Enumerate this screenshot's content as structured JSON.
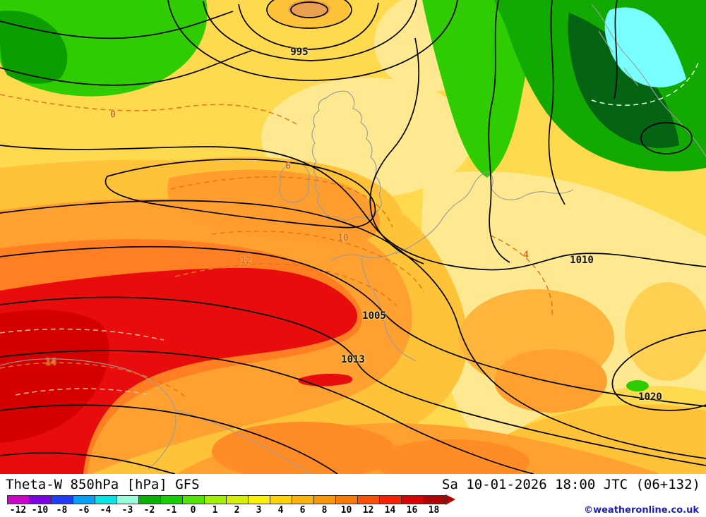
{
  "map": {
    "pressure_labels": [
      {
        "text": "995"
      },
      {
        "text": "1005"
      },
      {
        "text": "1010"
      },
      {
        "text": "1013"
      },
      {
        "text": "1020"
      }
    ],
    "theta_labels": [
      {
        "text": "0"
      },
      {
        "text": "6"
      },
      {
        "text": "10"
      },
      {
        "text": "12"
      },
      {
        "text": "14"
      },
      {
        "text": "4"
      }
    ],
    "pressure_contour_values": [
      995,
      1005,
      1010,
      1013,
      1020
    ],
    "theta_contour_values": [
      0,
      4,
      6,
      10,
      12,
      14
    ]
  },
  "footer": {
    "title_left": "Theta-W 850hPa [hPa] GFS",
    "title_right": "Sa 10-01-2026 18:00 JTC (06+132)",
    "copyright": "©weatheronline.co.uk"
  },
  "scale": {
    "ticks": [
      "-12",
      "-10",
      "-8",
      "-6",
      "-4",
      "-3",
      "-2",
      "-1",
      "0",
      "1",
      "2",
      "3",
      "4",
      "6",
      "8",
      "10",
      "12",
      "14",
      "16",
      "18"
    ],
    "colors": [
      "#cd00cd",
      "#7b00e6",
      "#1e3cff",
      "#00a0ff",
      "#00e6e6",
      "#96ffdc",
      "#00b400",
      "#14d200",
      "#50e600",
      "#a0f000",
      "#d2f000",
      "#fff000",
      "#ffd200",
      "#ffb400",
      "#ff9600",
      "#ff7800",
      "#ff5000",
      "#ff1e00",
      "#dc0000",
      "#b40000"
    ],
    "arrow_color": "#b40000"
  }
}
